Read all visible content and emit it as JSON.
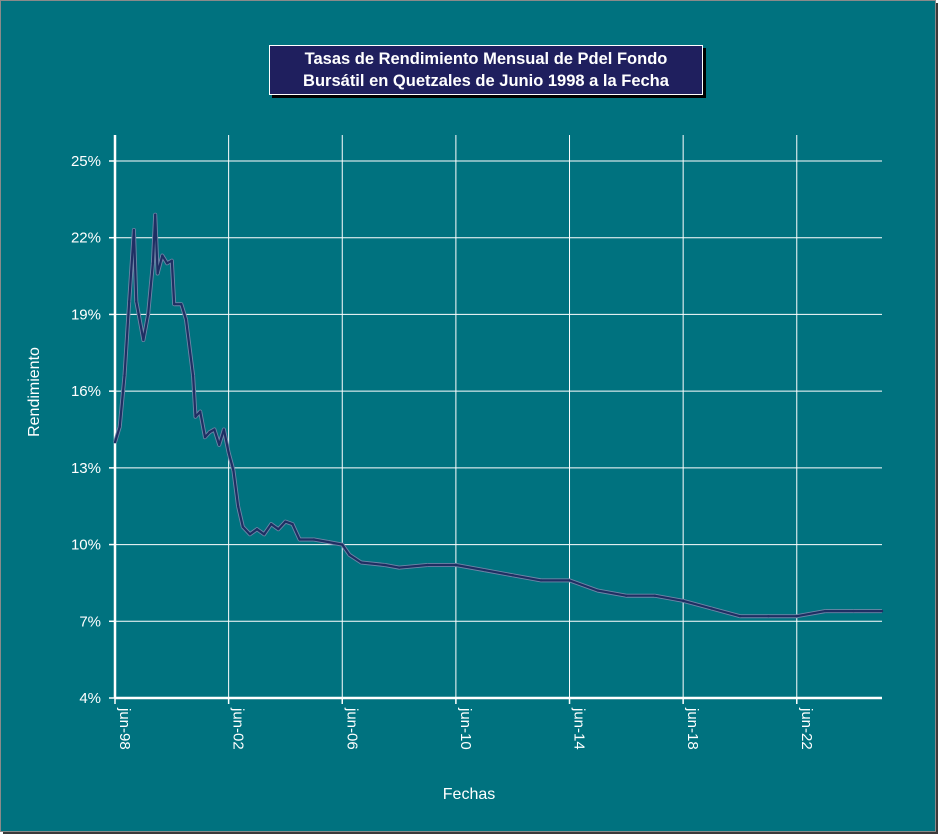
{
  "chart_data": {
    "type": "line",
    "title_lines": [
      "Tasas de Rendimiento Mensual de Pdel Fondo",
      "Bursátil en Quetzales de Junio 1998 a la Fecha"
    ],
    "xlabel": "Fechas",
    "ylabel": "Rendimiento",
    "x_range": [
      "1998-06",
      "2025-06"
    ],
    "ylim": [
      4,
      25
    ],
    "y_ticks": [
      {
        "value": 4,
        "label": "4%"
      },
      {
        "value": 7,
        "label": "7%"
      },
      {
        "value": 10,
        "label": "10%"
      },
      {
        "value": 13,
        "label": "13%"
      },
      {
        "value": 16,
        "label": "16%"
      },
      {
        "value": 19,
        "label": "19%"
      },
      {
        "value": 22,
        "label": "22%"
      },
      {
        "value": 25,
        "label": "25%"
      }
    ],
    "x_ticks": [
      {
        "date": "1998-06",
        "label": "jun-98"
      },
      {
        "date": "2002-06",
        "label": "jun-02"
      },
      {
        "date": "2006-06",
        "label": "jun-06"
      },
      {
        "date": "2010-06",
        "label": "jun-10"
      },
      {
        "date": "2014-06",
        "label": "jun-14"
      },
      {
        "date": "2018-06",
        "label": "jun-18"
      },
      {
        "date": "2022-06",
        "label": "jun-22"
      }
    ],
    "grid": true,
    "series": [
      {
        "color": "#1f2f63",
        "points": [
          [
            "1998-06",
            14.0
          ],
          [
            "1998-08",
            14.6
          ],
          [
            "1998-10",
            16.6
          ],
          [
            "1998-12",
            19.5
          ],
          [
            "1999-02",
            22.3
          ],
          [
            "1999-03",
            19.5
          ],
          [
            "1999-04",
            19.0
          ],
          [
            "1999-06",
            18.0
          ],
          [
            "1999-08",
            19.0
          ],
          [
            "1999-10",
            21.0
          ],
          [
            "1999-11",
            22.9
          ],
          [
            "1999-12",
            20.6
          ],
          [
            "2000-02",
            21.3
          ],
          [
            "2000-04",
            21.0
          ],
          [
            "2000-06",
            21.1
          ],
          [
            "2000-07",
            19.4
          ],
          [
            "2000-10",
            19.4
          ],
          [
            "2000-12",
            18.8
          ],
          [
            "2001-03",
            16.6
          ],
          [
            "2001-04",
            15.0
          ],
          [
            "2001-06",
            15.2
          ],
          [
            "2001-08",
            14.2
          ],
          [
            "2001-10",
            14.4
          ],
          [
            "2001-12",
            14.5
          ],
          [
            "2002-02",
            13.9
          ],
          [
            "2002-04",
            14.5
          ],
          [
            "2002-06",
            13.6
          ],
          [
            "2002-08",
            12.9
          ],
          [
            "2002-10",
            11.5
          ],
          [
            "2002-12",
            10.7
          ],
          [
            "2003-03",
            10.4
          ],
          [
            "2003-06",
            10.6
          ],
          [
            "2003-09",
            10.4
          ],
          [
            "2003-12",
            10.8
          ],
          [
            "2004-03",
            10.6
          ],
          [
            "2004-06",
            10.9
          ],
          [
            "2004-09",
            10.8
          ],
          [
            "2004-12",
            10.2
          ],
          [
            "2005-06",
            10.2
          ],
          [
            "2005-12",
            10.1
          ],
          [
            "2006-06",
            10.0
          ],
          [
            "2006-09",
            9.6
          ],
          [
            "2007-02",
            9.3
          ],
          [
            "2007-12",
            9.2
          ],
          [
            "2008-06",
            9.1
          ],
          [
            "2009-06",
            9.2
          ],
          [
            "2010-06",
            9.2
          ],
          [
            "2011-06",
            9.0
          ],
          [
            "2012-06",
            8.8
          ],
          [
            "2013-06",
            8.6
          ],
          [
            "2014-06",
            8.6
          ],
          [
            "2015-06",
            8.2
          ],
          [
            "2016-06",
            8.0
          ],
          [
            "2017-06",
            8.0
          ],
          [
            "2018-06",
            7.8
          ],
          [
            "2019-06",
            7.5
          ],
          [
            "2020-06",
            7.2
          ],
          [
            "2021-06",
            7.2
          ],
          [
            "2022-06",
            7.2
          ],
          [
            "2023-06",
            7.4
          ],
          [
            "2024-06",
            7.4
          ],
          [
            "2025-06",
            7.4
          ]
        ]
      }
    ]
  }
}
